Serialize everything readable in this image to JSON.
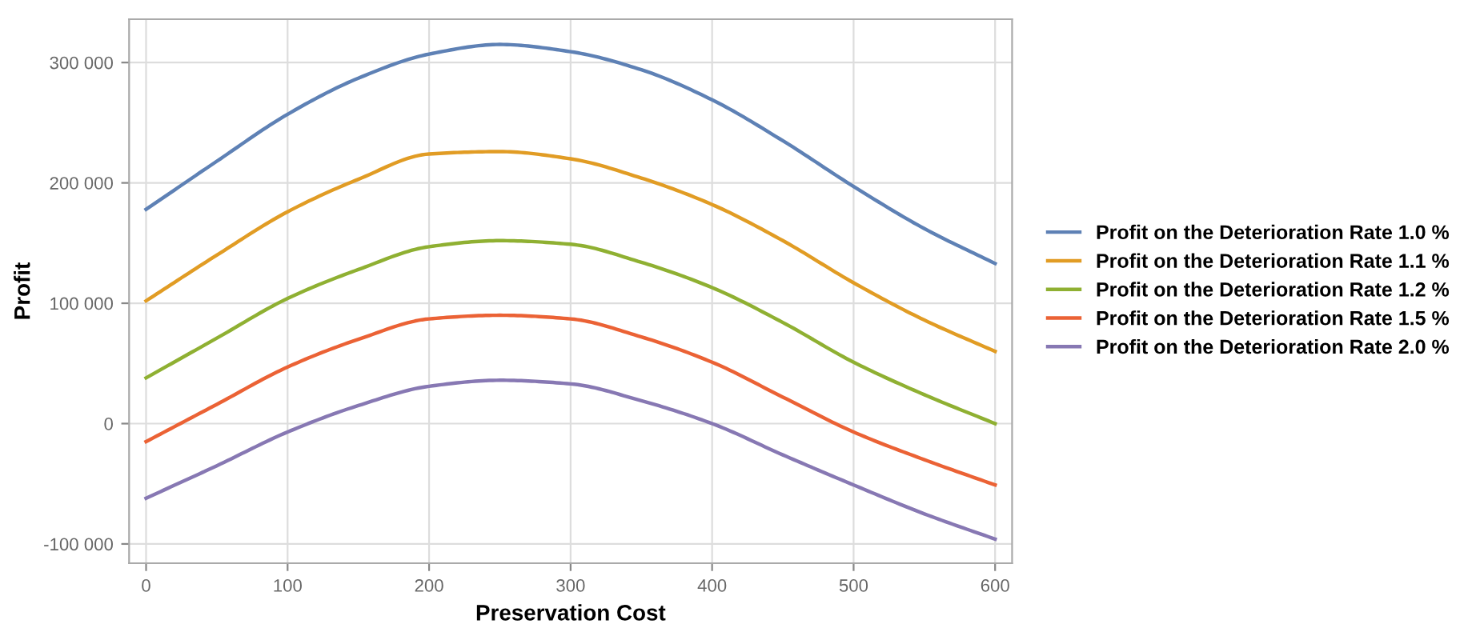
{
  "chart_data": {
    "type": "line",
    "xlabel": "Preservation Cost",
    "ylabel": "Profit",
    "x": [
      0,
      50,
      100,
      150,
      200,
      250,
      300,
      350,
      400,
      450,
      500,
      550,
      600
    ],
    "series": [
      {
        "name": "Profit on the Deterioration Rate 1.0 %",
        "color": "#5e81b5",
        "values": [
          178000,
          218000,
          257000,
          287000,
          307000,
          315000,
          309000,
          294000,
          269000,
          235000,
          197000,
          162000,
          133000
        ]
      },
      {
        "name": "Profit on the Deterioration Rate 1.1 %",
        "color": "#e19c24",
        "values": [
          102000,
          140000,
          176000,
          203000,
          224000,
          226000,
          220000,
          204000,
          182000,
          152000,
          117000,
          86000,
          60000
        ]
      },
      {
        "name": "Profit on the Deterioration Rate 1.2 %",
        "color": "#8fb032",
        "values": [
          38000,
          71000,
          104000,
          128000,
          147000,
          152000,
          149000,
          134000,
          113000,
          84000,
          51000,
          24000,
          0
        ]
      },
      {
        "name": "Profit on the Deterioration Rate 1.5 %",
        "color": "#eb6235",
        "values": [
          -15000,
          16000,
          47000,
          70000,
          87000,
          90000,
          87000,
          72000,
          51000,
          22000,
          -7000,
          -30000,
          -51000
        ]
      },
      {
        "name": "Profit on the Deterioration Rate 2.0 %",
        "color": "#8778b3",
        "values": [
          -62000,
          -35000,
          -7000,
          15000,
          31000,
          36000,
          33000,
          19000,
          0,
          -26000,
          -51000,
          -75000,
          -96000
        ]
      }
    ],
    "xlim": [
      -12,
      612
    ],
    "ylim": [
      -116000,
      336000
    ],
    "xticks": [
      0,
      100,
      200,
      300,
      400,
      500,
      600
    ],
    "yticks": [
      {
        "value": -100000,
        "label": "-100 000"
      },
      0,
      {
        "value": 100000,
        "label": "100 000"
      },
      {
        "value": 200000,
        "label": "200 000"
      },
      {
        "value": 300000,
        "label": "300 000"
      }
    ],
    "grid": true,
    "legend": "right",
    "marker": "none",
    "line_style": "solid"
  }
}
